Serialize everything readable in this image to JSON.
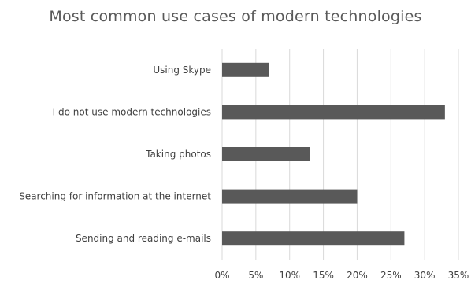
{
  "chart_data": {
    "type": "bar",
    "orientation": "horizontal",
    "title": "Most common use cases of modern technologies",
    "xlabel": "",
    "ylabel": "",
    "categories": [
      "Using Skype",
      "I do not use modern technologies",
      "Taking photos",
      "Searching for information at the internet",
      "Sending and reading e-mails"
    ],
    "values": [
      7,
      33,
      13,
      20,
      27
    ],
    "xlim": [
      0,
      35
    ],
    "ticks": [
      0,
      5,
      10,
      15,
      20,
      25,
      30,
      35
    ],
    "tick_labels": [
      "0%",
      "5%",
      "10%",
      "15%",
      "20%",
      "25%",
      "30%",
      "35%"
    ],
    "grid": true,
    "legend": "none",
    "bar_color": "#595959",
    "grid_color": "#d9d9d9"
  }
}
